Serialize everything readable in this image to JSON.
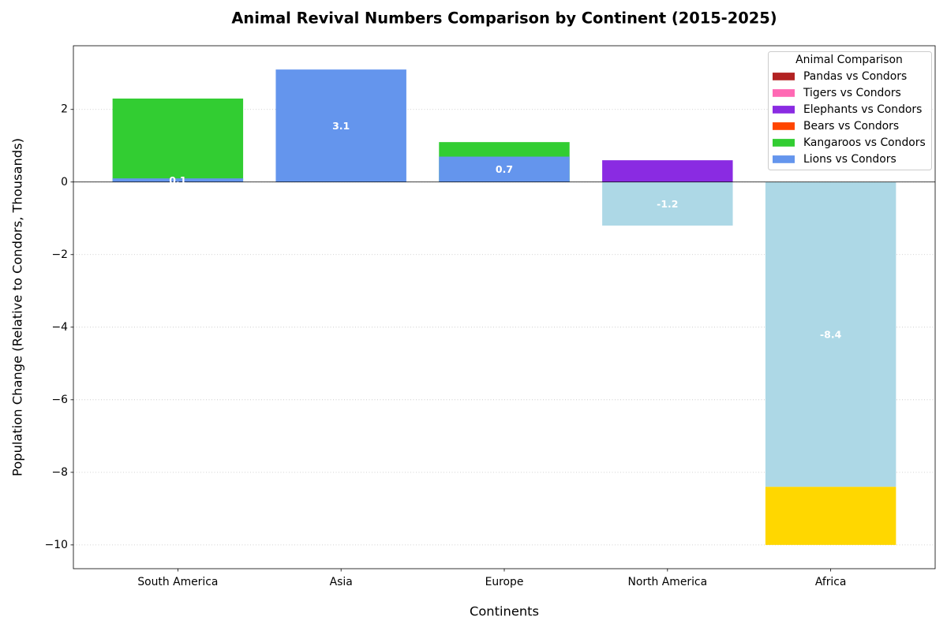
{
  "chart_data": {
    "type": "bar",
    "title": "Animal Revival Numbers Comparison by Continent (2015-2025)",
    "xlabel": "Continents",
    "ylabel": "Population Change (Relative to Condors, Thousands)",
    "categories": [
      "South America",
      "Asia",
      "Europe",
      "North America",
      "Africa"
    ],
    "ylim": [
      -10.655,
      3.755
    ],
    "yticks": [
      2,
      0,
      -2,
      -4,
      -6,
      -8,
      -10
    ],
    "ytick_labels": [
      "2",
      "0",
      "−2",
      "−4",
      "−6",
      "−8",
      "−10"
    ],
    "grid": true,
    "zero_line": true,
    "legend": {
      "title": "Animal Comparison",
      "position": "top-right"
    },
    "series": [
      {
        "name": "Pandas vs Condors",
        "color": "#B22222"
      },
      {
        "name": "Tigers vs Condors",
        "color": "#FF69B4"
      },
      {
        "name": "Elephants vs Condors",
        "color": "#8A2BE2",
        "values": [
          null,
          null,
          null,
          0.6,
          null
        ]
      },
      {
        "name": "Bears vs Condors",
        "color": "#FF4500"
      },
      {
        "name": "Kangaroos vs Condors",
        "color": "#32CD32",
        "values": [
          2.3,
          null,
          1.1,
          null,
          null
        ]
      },
      {
        "name": "Lions vs Condors",
        "color": "#6495ED",
        "values": [
          0.1,
          3.1,
          0.7,
          null,
          null
        ],
        "labels": [
          "0.1",
          "3.1",
          "0.7",
          null,
          null
        ]
      },
      {
        "color": "#ADD8E6",
        "values": [
          null,
          null,
          null,
          -1.2,
          -8.4
        ],
        "labels": [
          null,
          null,
          null,
          "-1.2",
          "-8.4"
        ]
      },
      {
        "color": "#FFD700",
        "base": [
          null,
          null,
          null,
          null,
          -8.4
        ],
        "values": [
          null,
          null,
          null,
          null,
          -1.6
        ]
      }
    ]
  }
}
